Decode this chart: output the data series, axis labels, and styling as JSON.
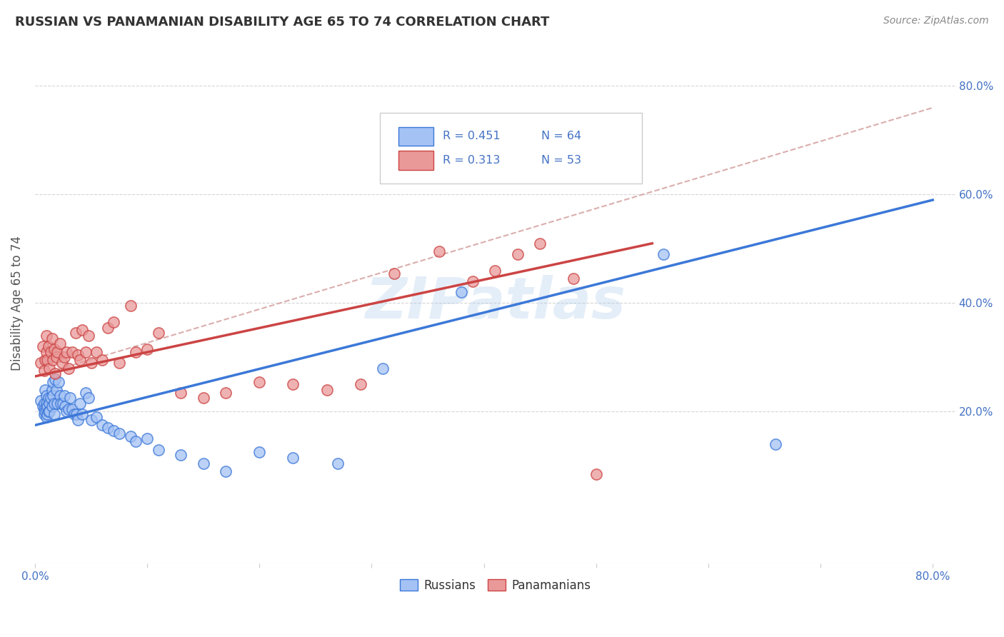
{
  "title": "RUSSIAN VS PANAMANIAN DISABILITY AGE 65 TO 74 CORRELATION CHART",
  "source": "Source: ZipAtlas.com",
  "ylabel": "Disability Age 65 to 74",
  "russian_color": "#a4c2f4",
  "panamanian_color": "#ea9999",
  "russian_line_color": "#3c78d8",
  "panamanian_line_color": "#cc4444",
  "dashed_color": "#d4a0a0",
  "watermark": "ZIPatlas",
  "legend_r_russian": "R = 0.451",
  "legend_n_russian": "N = 64",
  "legend_r_panamanian": "R = 0.313",
  "legend_n_panamanian": "N = 53",
  "russian_scatter_x": [
    0.005,
    0.007,
    0.008,
    0.008,
    0.008,
    0.009,
    0.009,
    0.01,
    0.01,
    0.01,
    0.01,
    0.011,
    0.011,
    0.012,
    0.012,
    0.013,
    0.013,
    0.014,
    0.015,
    0.015,
    0.016,
    0.016,
    0.017,
    0.017,
    0.018,
    0.019,
    0.02,
    0.021,
    0.022,
    0.023,
    0.025,
    0.026,
    0.027,
    0.028,
    0.03,
    0.031,
    0.033,
    0.035,
    0.037,
    0.038,
    0.04,
    0.042,
    0.045,
    0.048,
    0.05,
    0.055,
    0.06,
    0.065,
    0.07,
    0.075,
    0.085,
    0.09,
    0.1,
    0.11,
    0.13,
    0.15,
    0.17,
    0.2,
    0.23,
    0.27,
    0.31,
    0.38,
    0.56,
    0.66
  ],
  "russian_scatter_y": [
    0.22,
    0.21,
    0.195,
    0.215,
    0.205,
    0.24,
    0.2,
    0.19,
    0.23,
    0.215,
    0.205,
    0.21,
    0.195,
    0.225,
    0.2,
    0.215,
    0.2,
    0.225,
    0.24,
    0.21,
    0.255,
    0.23,
    0.215,
    0.195,
    0.26,
    0.24,
    0.215,
    0.255,
    0.23,
    0.215,
    0.215,
    0.23,
    0.21,
    0.2,
    0.205,
    0.225,
    0.205,
    0.195,
    0.195,
    0.185,
    0.215,
    0.195,
    0.235,
    0.225,
    0.185,
    0.19,
    0.175,
    0.17,
    0.165,
    0.16,
    0.155,
    0.145,
    0.15,
    0.13,
    0.12,
    0.105,
    0.09,
    0.125,
    0.115,
    0.105,
    0.28,
    0.42,
    0.49,
    0.14
  ],
  "panamanian_scatter_x": [
    0.005,
    0.007,
    0.008,
    0.009,
    0.01,
    0.01,
    0.011,
    0.012,
    0.013,
    0.014,
    0.015,
    0.016,
    0.017,
    0.018,
    0.019,
    0.02,
    0.022,
    0.024,
    0.026,
    0.028,
    0.03,
    0.033,
    0.036,
    0.038,
    0.04,
    0.042,
    0.045,
    0.048,
    0.05,
    0.055,
    0.06,
    0.065,
    0.07,
    0.075,
    0.085,
    0.09,
    0.1,
    0.11,
    0.13,
    0.15,
    0.17,
    0.2,
    0.23,
    0.26,
    0.29,
    0.32,
    0.36,
    0.39,
    0.41,
    0.43,
    0.45,
    0.48,
    0.5
  ],
  "panamanian_scatter_y": [
    0.29,
    0.32,
    0.275,
    0.295,
    0.34,
    0.31,
    0.295,
    0.32,
    0.28,
    0.31,
    0.335,
    0.295,
    0.315,
    0.27,
    0.3,
    0.31,
    0.325,
    0.29,
    0.3,
    0.31,
    0.28,
    0.31,
    0.345,
    0.305,
    0.295,
    0.35,
    0.31,
    0.34,
    0.29,
    0.31,
    0.295,
    0.355,
    0.365,
    0.29,
    0.395,
    0.31,
    0.315,
    0.345,
    0.235,
    0.225,
    0.235,
    0.255,
    0.25,
    0.24,
    0.25,
    0.455,
    0.495,
    0.44,
    0.46,
    0.49,
    0.51,
    0.445,
    0.085
  ],
  "russian_line": {
    "x0": 0.0,
    "x1": 0.8,
    "y0": 0.175,
    "y1": 0.59
  },
  "panamanian_line": {
    "x0": 0.0,
    "x1": 0.55,
    "y0": 0.265,
    "y1": 0.51
  },
  "dashed_line": {
    "x0": 0.0,
    "x1": 0.8,
    "y0": 0.265,
    "y1": 0.76
  },
  "xlim": [
    0.0,
    0.82
  ],
  "ylim": [
    -0.08,
    0.88
  ],
  "xtick_positions": [
    0.0,
    0.1,
    0.2,
    0.3,
    0.4,
    0.5,
    0.6,
    0.7,
    0.8
  ],
  "xtick_labels": [
    "0.0%",
    "",
    "",
    "",
    "",
    "",
    "",
    "",
    "80.0%"
  ],
  "ytick_positions": [
    0.2,
    0.4,
    0.6,
    0.8
  ],
  "ytick_labels": [
    "20.0%",
    "40.0%",
    "60.0%",
    "80.0%"
  ]
}
